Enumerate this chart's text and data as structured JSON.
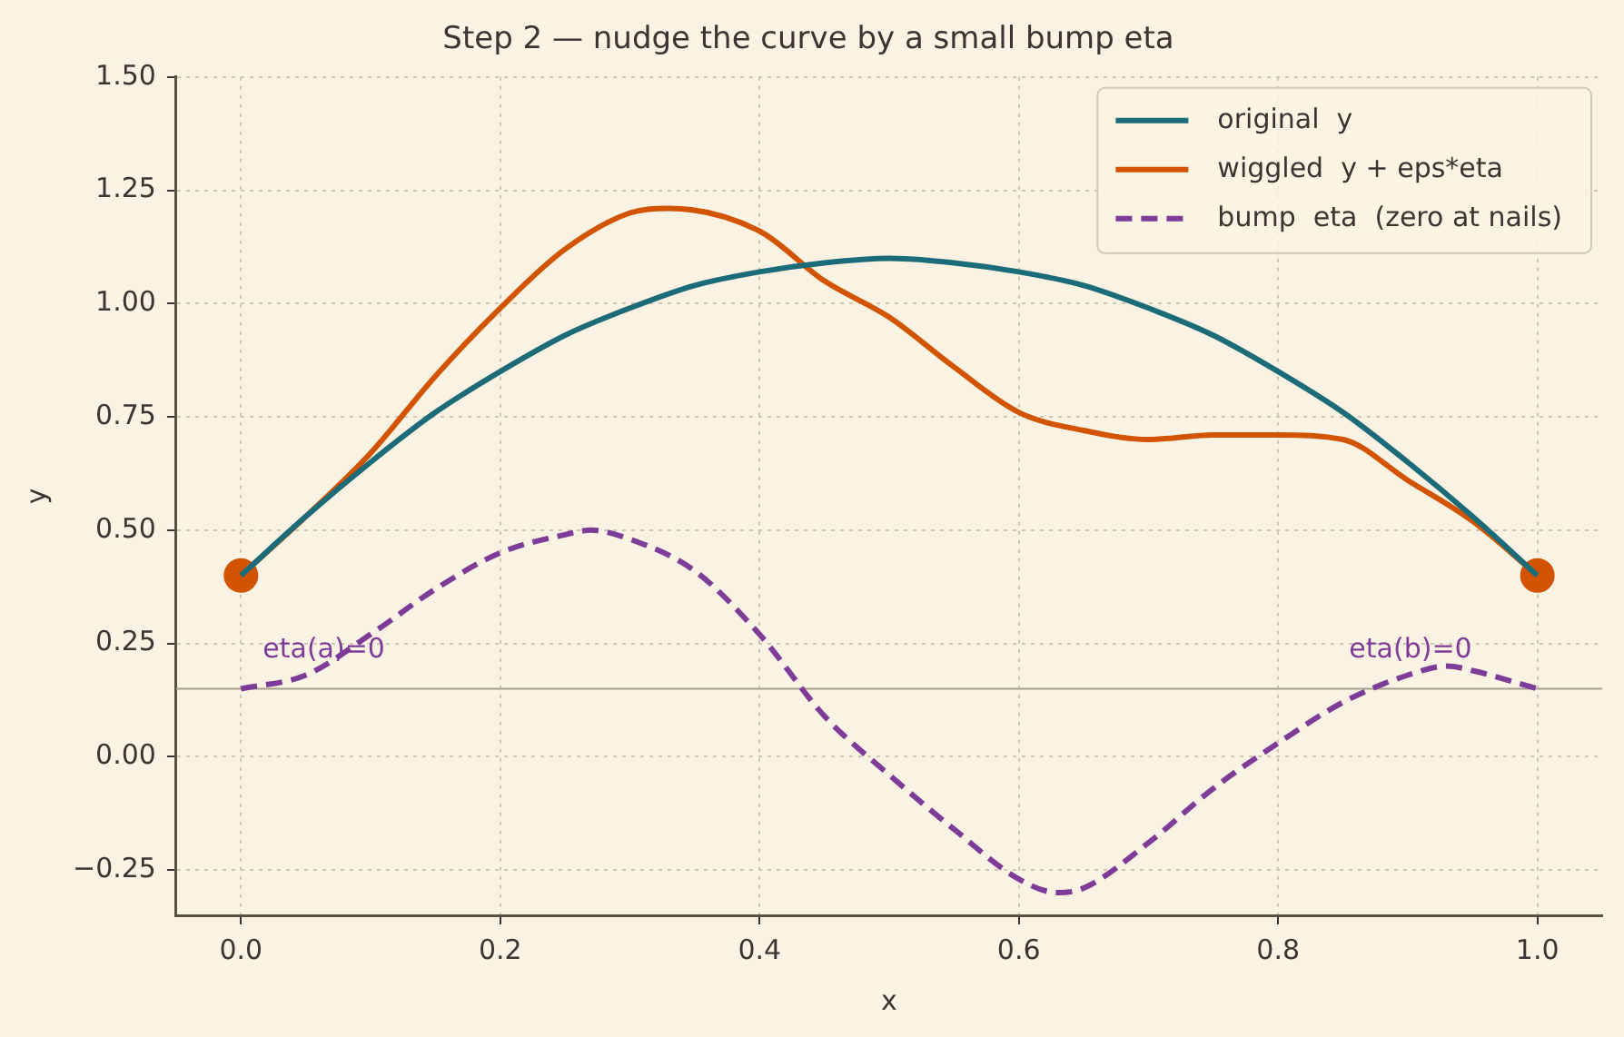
{
  "chart_data": {
    "type": "line",
    "title": "Step 2 — nudge the curve by a small bump eta",
    "xlabel": "x",
    "ylabel": "y",
    "xlim": [
      -0.05,
      1.05
    ],
    "xticks": [
      {
        "value": 0,
        "label": "0.0"
      },
      0.2,
      0.4,
      0.6,
      0.8,
      {
        "value": 1,
        "label": "1.0"
      }
    ],
    "ylim": [
      -0.35,
      1.5
    ],
    "yticks": [
      {
        "value": -0.25,
        "label": "−0.25"
      },
      {
        "value": 0,
        "label": "0.00"
      },
      {
        "value": 0.25,
        "label": "0.25"
      },
      {
        "value": 0.5,
        "label": "0.50"
      },
      {
        "value": 0.75,
        "label": "0.75"
      },
      {
        "value": 1,
        "label": "1.00"
      },
      {
        "value": 1.25,
        "label": "1.25"
      },
      {
        "value": 1.5,
        "label": "1.50"
      }
    ],
    "grid": true,
    "legend": "top right",
    "series": [
      {
        "name": "original  y",
        "color": "#1b6b78",
        "line_style": "solid",
        "marker": "none",
        "x": [
          0,
          0.05,
          0.1,
          0.15,
          0.2,
          0.25,
          0.3,
          0.35,
          0.4,
          0.45,
          0.5,
          0.55,
          0.6,
          0.65,
          0.7,
          0.75,
          0.8,
          0.85,
          0.9,
          0.95,
          1
        ],
        "values": [
          0.4,
          0.53,
          0.65,
          0.76,
          0.85,
          0.93,
          0.99,
          1.04,
          1.07,
          1.09,
          1.1,
          1.09,
          1.07,
          1.04,
          0.99,
          0.93,
          0.85,
          0.76,
          0.65,
          0.53,
          0.4
        ]
      },
      {
        "name": "wiggled  y + eps*eta",
        "color": "#d35400",
        "line_style": "solid",
        "marker": "none",
        "x": [
          0,
          0.05,
          0.1,
          0.15,
          0.2,
          0.25,
          0.3,
          0.33,
          0.4,
          0.45,
          0.5,
          0.55,
          0.6,
          0.65,
          0.7,
          0.75,
          0.8,
          0.85,
          0.9,
          0.95,
          1
        ],
        "values": [
          0.4,
          0.53,
          0.67,
          0.84,
          0.99,
          1.12,
          1.2,
          1.21,
          1.16,
          1.05,
          0.97,
          0.86,
          0.76,
          0.72,
          0.7,
          0.71,
          0.71,
          0.7,
          0.61,
          0.52,
          0.4
        ]
      },
      {
        "name": "bump  eta  (zero at nails)",
        "color": "#7d3c98",
        "line_style": "dashed",
        "marker": "none",
        "x": [
          0,
          0.05,
          0.1,
          0.15,
          0.2,
          0.25,
          0.27,
          0.3,
          0.35,
          0.4,
          0.45,
          0.5,
          0.55,
          0.6,
          0.63,
          0.65,
          0.7,
          0.75,
          0.8,
          0.85,
          0.9,
          0.93,
          0.95,
          1
        ],
        "values": [
          0.15,
          0.18,
          0.27,
          0.37,
          0.45,
          0.49,
          0.5,
          0.48,
          0.41,
          0.27,
          0.09,
          -0.04,
          -0.16,
          -0.27,
          -0.3,
          -0.29,
          -0.19,
          -0.07,
          0.03,
          0.12,
          0.18,
          0.2,
          0.19,
          0.15
        ]
      },
      {
        "type": "scatter",
        "color": "#d35400",
        "marker": "circle",
        "x": [
          0,
          1
        ],
        "values": [
          0.4,
          0.4
        ]
      }
    ],
    "ref_lines": [
      {
        "axis": "y",
        "value": 0.15,
        "color": "#a89f8e"
      }
    ],
    "annotations": [
      {
        "text": "eta(a)=0",
        "x": 0,
        "y": 0.15
      },
      {
        "text": "eta(b)=0",
        "x": 1,
        "y": 0.15
      }
    ]
  }
}
